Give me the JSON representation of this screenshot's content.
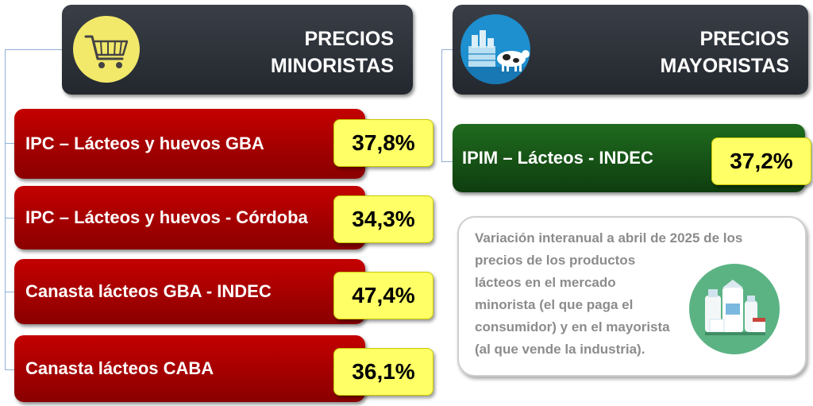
{
  "minoristas": {
    "title_line1": "PRECIOS",
    "title_line2": "MINORISTAS",
    "icon": "shopping-cart-icon",
    "items": [
      {
        "label": "IPC – Lácteos y huevos GBA",
        "value": "37,8%"
      },
      {
        "label": "IPC – Lácteos y huevos - Córdoba",
        "value": "34,3%"
      },
      {
        "label": "Canasta lácteos GBA - INDEC",
        "value": "47,4%"
      },
      {
        "label": "Canasta lácteos CABA",
        "value": "36,1%"
      }
    ]
  },
  "mayoristas": {
    "title_line1": "PRECIOS",
    "title_line2": "MAYORISTAS",
    "icon": "dairy-factory-cow-icon",
    "items": [
      {
        "label": "IPIM – Lácteos - INDEC",
        "value": "37,2%"
      }
    ]
  },
  "note": {
    "text_lines": [
      "Variación interanual a abril de 2025 de los",
      "precios de los productos",
      "lácteos en el mercado",
      "minorista (el que paga el",
      "consumidor) y en el mayorista",
      "(al que vende la industria)."
    ],
    "icon": "dairy-products-icon"
  },
  "colors": {
    "header_bg": "#2c3038",
    "retail_box": "#a80000",
    "wholesale_box": "#174f17",
    "value_box": "#ffff66",
    "connector": "#8fb0d8",
    "note_text": "#8c8c8c"
  }
}
